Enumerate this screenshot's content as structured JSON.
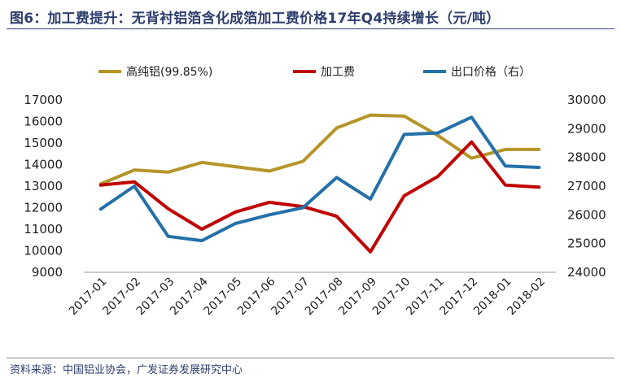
{
  "title": "图6：加工费提升：无背衬铝箔含化成箔加工费价格17年Q4持续增长（元/吨）",
  "source": "资料来源：中国铝业协会，广发证券发展研究中心",
  "colors": {
    "title": "#2e3e6e",
    "high_purity": "#b5952a",
    "processing_fee": "#c00000",
    "export_price": "#2470a8"
  },
  "chart_data": {
    "type": "line",
    "categories": [
      "2017-01",
      "2017-02",
      "2017-03",
      "2017-04",
      "2017-05",
      "2017-06",
      "2017-07",
      "2017-08",
      "2017-09",
      "2017-10",
      "2017-11",
      "2017-12",
      "2018-01",
      "2018-02"
    ],
    "left_axis": {
      "ylim": [
        9000,
        17000
      ],
      "ticks": [
        9000,
        10000,
        11000,
        12000,
        13000,
        14000,
        15000,
        16000,
        17000
      ]
    },
    "right_axis": {
      "ylim": [
        24000,
        30000
      ],
      "ticks": [
        24000,
        25000,
        26000,
        27000,
        28000,
        29000,
        30000
      ]
    },
    "legend_position": "top",
    "grid": false,
    "series": [
      {
        "name": "高纯铝(99.85%)",
        "axis": "left",
        "color": "#b5952a",
        "values": [
          13100,
          13750,
          13650,
          14100,
          13900,
          13700,
          14150,
          15700,
          16300,
          16250,
          15350,
          14300,
          14700,
          14700
        ]
      },
      {
        "name": "加工费",
        "axis": "left",
        "color": "#c00000",
        "values": [
          13050,
          13200,
          11950,
          11000,
          11800,
          12250,
          12050,
          11600,
          9950,
          12550,
          13450,
          15050,
          13050,
          12950
        ]
      },
      {
        "name": "出口价格（右）",
        "axis": "right",
        "color": "#2470a8",
        "values": [
          26200,
          27000,
          25250,
          25100,
          25700,
          26000,
          26250,
          27300,
          26550,
          28800,
          28850,
          29400,
          27700,
          27650
        ]
      }
    ]
  }
}
